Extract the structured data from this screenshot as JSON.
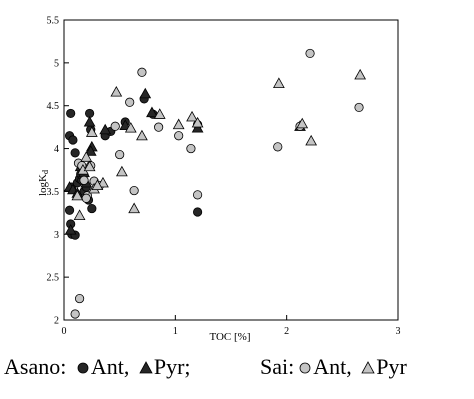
{
  "chart_data": {
    "type": "scatter",
    "title": "",
    "xlabel": "TOC [%]",
    "ylabel_main": "logK",
    "ylabel_sub": "d",
    "xlim": [
      0,
      3
    ],
    "ylim": [
      2,
      5.5
    ],
    "xticks": [
      "0",
      "1",
      "2",
      "3"
    ],
    "yticks": [
      "2",
      "2.5",
      "3",
      "3.5",
      "4",
      "4.5",
      "5",
      "5.5"
    ],
    "grid": false,
    "series": [
      {
        "name": "Asano Ant",
        "marker": "circle",
        "fill": "#262626",
        "points": [
          [
            0.06,
            4.41
          ],
          [
            0.05,
            4.15
          ],
          [
            0.08,
            4.1
          ],
          [
            0.1,
            3.95
          ],
          [
            0.07,
            3.55
          ],
          [
            0.12,
            3.6
          ],
          [
            0.14,
            3.65
          ],
          [
            0.16,
            3.63
          ],
          [
            0.18,
            3.5
          ],
          [
            0.2,
            3.55
          ],
          [
            0.22,
            3.4
          ],
          [
            0.25,
            3.3
          ],
          [
            0.05,
            3.28
          ],
          [
            0.06,
            3.12
          ],
          [
            0.07,
            3.0
          ],
          [
            0.1,
            2.99
          ],
          [
            0.23,
            4.41
          ],
          [
            0.37,
            4.15
          ],
          [
            0.42,
            4.2
          ],
          [
            0.55,
            4.31
          ],
          [
            0.72,
            4.58
          ],
          [
            0.8,
            4.4
          ],
          [
            1.2,
            4.28
          ],
          [
            1.2,
            3.26
          ],
          [
            0.15,
            3.7
          ],
          [
            0.24,
            4.22
          ]
        ]
      },
      {
        "name": "Asano Pyr",
        "marker": "triangle",
        "fill": "#262626",
        "points": [
          [
            0.05,
            3.55
          ],
          [
            0.08,
            3.52
          ],
          [
            0.12,
            3.48
          ],
          [
            0.15,
            3.79
          ],
          [
            0.18,
            3.72
          ],
          [
            0.2,
            3.6
          ],
          [
            0.23,
            4.31
          ],
          [
            0.25,
            4.02
          ],
          [
            0.37,
            4.22
          ],
          [
            0.55,
            4.27
          ],
          [
            0.73,
            4.64
          ],
          [
            0.79,
            4.42
          ],
          [
            1.2,
            4.24
          ],
          [
            2.12,
            4.26
          ],
          [
            0.06,
            3.05
          ],
          [
            0.24,
            3.97
          ]
        ]
      },
      {
        "name": "Sai Ant",
        "marker": "circle",
        "fill": "#c4c4c4",
        "points": [
          [
            0.1,
            2.07
          ],
          [
            0.14,
            2.25
          ],
          [
            0.13,
            3.83
          ],
          [
            0.16,
            3.8
          ],
          [
            0.18,
            3.63
          ],
          [
            0.21,
            3.45
          ],
          [
            0.24,
            3.8
          ],
          [
            0.27,
            3.62
          ],
          [
            0.32,
            3.57
          ],
          [
            0.46,
            4.26
          ],
          [
            0.5,
            3.93
          ],
          [
            0.59,
            4.54
          ],
          [
            0.63,
            3.51
          ],
          [
            0.7,
            4.89
          ],
          [
            0.85,
            4.25
          ],
          [
            1.03,
            4.15
          ],
          [
            1.14,
            4.0
          ],
          [
            1.2,
            3.46
          ],
          [
            1.92,
            4.02
          ],
          [
            2.12,
            4.26
          ],
          [
            2.21,
            5.11
          ],
          [
            2.65,
            4.48
          ],
          [
            0.2,
            3.42
          ]
        ]
      },
      {
        "name": "Sai Pyr",
        "marker": "triangle",
        "fill": "#c4c4c4",
        "points": [
          [
            0.12,
            3.45
          ],
          [
            0.14,
            3.22
          ],
          [
            0.17,
            3.75
          ],
          [
            0.2,
            3.9
          ],
          [
            0.23,
            3.79
          ],
          [
            0.25,
            4.19
          ],
          [
            0.27,
            3.53
          ],
          [
            0.35,
            3.6
          ],
          [
            0.47,
            4.66
          ],
          [
            0.52,
            3.73
          ],
          [
            0.6,
            4.24
          ],
          [
            0.63,
            3.3
          ],
          [
            0.7,
            4.15
          ],
          [
            0.86,
            4.4
          ],
          [
            1.03,
            4.28
          ],
          [
            1.15,
            4.37
          ],
          [
            1.2,
            4.3
          ],
          [
            1.93,
            4.76
          ],
          [
            2.14,
            4.29
          ],
          [
            2.22,
            4.09
          ],
          [
            2.66,
            4.86
          ],
          [
            0.3,
            3.57
          ]
        ]
      }
    ]
  },
  "legend": {
    "group1_label": "Asano:",
    "group1_ant": "Ant,",
    "group1_pyr": "Pyr;",
    "group2_label": "Sai:",
    "group2_ant": "Ant,",
    "group2_pyr": "Pyr"
  },
  "colors": {
    "asano_fill": "#262626",
    "sai_fill": "#c4c4c4",
    "stroke": "#000000"
  }
}
